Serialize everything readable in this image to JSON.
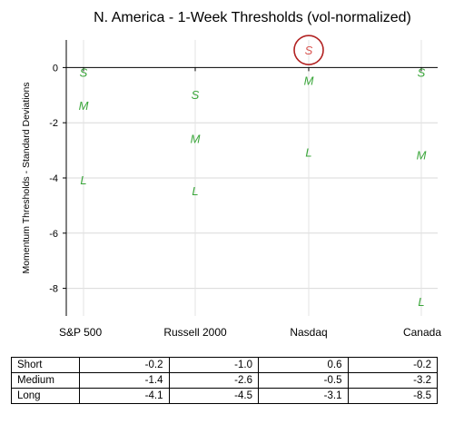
{
  "chart_data": {
    "type": "scatter",
    "title": "N. America - 1-Week Thresholds (vol-normalized)",
    "xlabel": "",
    "ylabel": "Momentum Thresholds - Standard Deviations",
    "categories": [
      "S&P 500",
      "Russell 2000",
      "Nasdaq",
      "Canada"
    ],
    "ylim": [
      -9,
      1
    ],
    "yticks": [
      0,
      -2,
      -4,
      -6,
      -8
    ],
    "grid": "horizontal",
    "series": [
      {
        "marker": "S",
        "color": "#3aa63a",
        "values": [
          -0.2,
          -1.0,
          0.6,
          -0.2
        ]
      },
      {
        "marker": "M",
        "color": "#3aa63a",
        "values": [
          -1.4,
          -2.6,
          -0.5,
          -3.2
        ]
      },
      {
        "marker": "L",
        "color": "#3aa63a",
        "values": [
          -4.1,
          -4.5,
          -3.1,
          -8.5
        ]
      }
    ],
    "highlight": {
      "series_index": 0,
      "category_index": 2,
      "text_color": "#d9534f",
      "circle_color": "#b22222"
    }
  },
  "table": {
    "rows": [
      {
        "label": "Short",
        "values": [
          "-0.2",
          "-1.0",
          "0.6",
          "-0.2"
        ]
      },
      {
        "label": "Medium",
        "values": [
          "-1.4",
          "-2.6",
          "-0.5",
          "-3.2"
        ]
      },
      {
        "label": "Long",
        "values": [
          "-4.1",
          "-4.5",
          "-3.1",
          "-8.5"
        ]
      }
    ]
  }
}
